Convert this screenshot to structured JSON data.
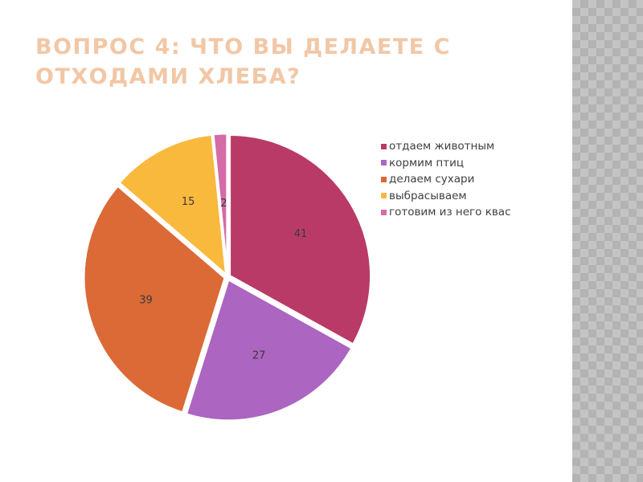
{
  "slide": {
    "title_line1": "ВОПРОС 4: ЧТО ВЫ ДЕЛАЕТЕ С",
    "title_line2": "ОТХОДАМИ ХЛЕБА?"
  },
  "chart_data": {
    "type": "pie",
    "title": "",
    "legend_position": "right",
    "start_angle_deg": 0,
    "direction": "clockwise",
    "exploded": true,
    "slices": [
      {
        "label": "отдаем животным",
        "value": 41,
        "value_label": "41",
        "color": "#b93a67"
      },
      {
        "label": "кормим птиц",
        "value": 27,
        "value_label": "27",
        "color": "#ac65c1"
      },
      {
        "label": "делаем сухари",
        "value": 39,
        "value_label": "39",
        "color": "#db6a36"
      },
      {
        "label": "выбрасываем",
        "value": 15,
        "value_label": "15",
        "color": "#f8b93d"
      },
      {
        "label": "готовим из него квас",
        "value": 2,
        "value_label": "2",
        "color": "#d56ba7"
      }
    ]
  }
}
